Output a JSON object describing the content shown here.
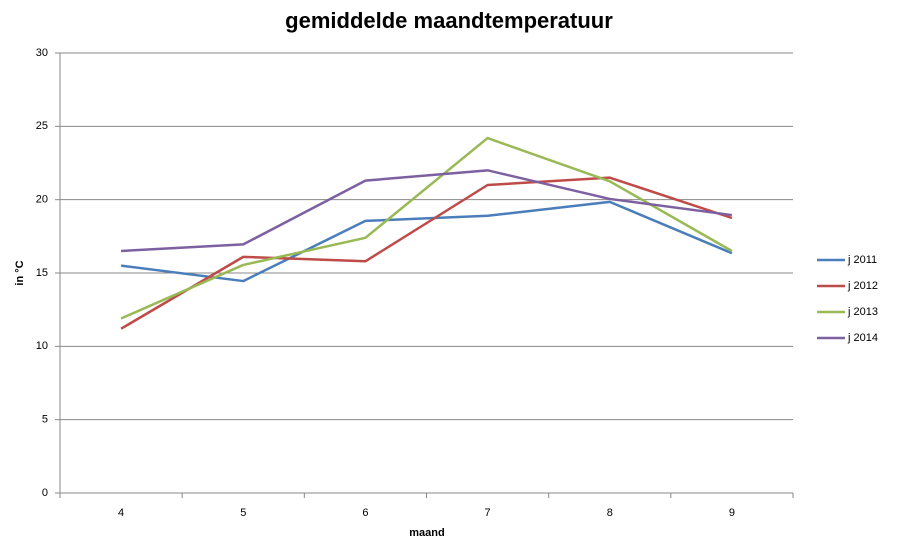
{
  "chart_data": {
    "type": "line",
    "title": "gemiddelde maandtemperatuur",
    "x_label": "maand",
    "y_label": "in °C",
    "categories": [
      "4",
      "5",
      "6",
      "7",
      "8",
      "9"
    ],
    "series": [
      {
        "name": "j 2011",
        "color": "#4a7ebb",
        "values": [
          15.5,
          14.45,
          18.55,
          18.9,
          19.85,
          16.35
        ]
      },
      {
        "name": "j 2012",
        "color": "#be4b48",
        "values": [
          11.2,
          16.1,
          15.8,
          21.0,
          21.5,
          18.75
        ]
      },
      {
        "name": "j 2013",
        "color": "#98b954",
        "values": [
          11.9,
          15.55,
          17.4,
          24.2,
          21.25,
          16.5
        ]
      },
      {
        "name": "j 2014",
        "color": "#7d60a0",
        "values": [
          16.5,
          16.95,
          21.3,
          22.0,
          20.05,
          18.95
        ]
      }
    ],
    "ylim": [
      0,
      30
    ],
    "yticks": [
      0,
      5,
      10,
      15,
      20,
      25,
      30
    ],
    "grid": true,
    "legend": "right"
  }
}
